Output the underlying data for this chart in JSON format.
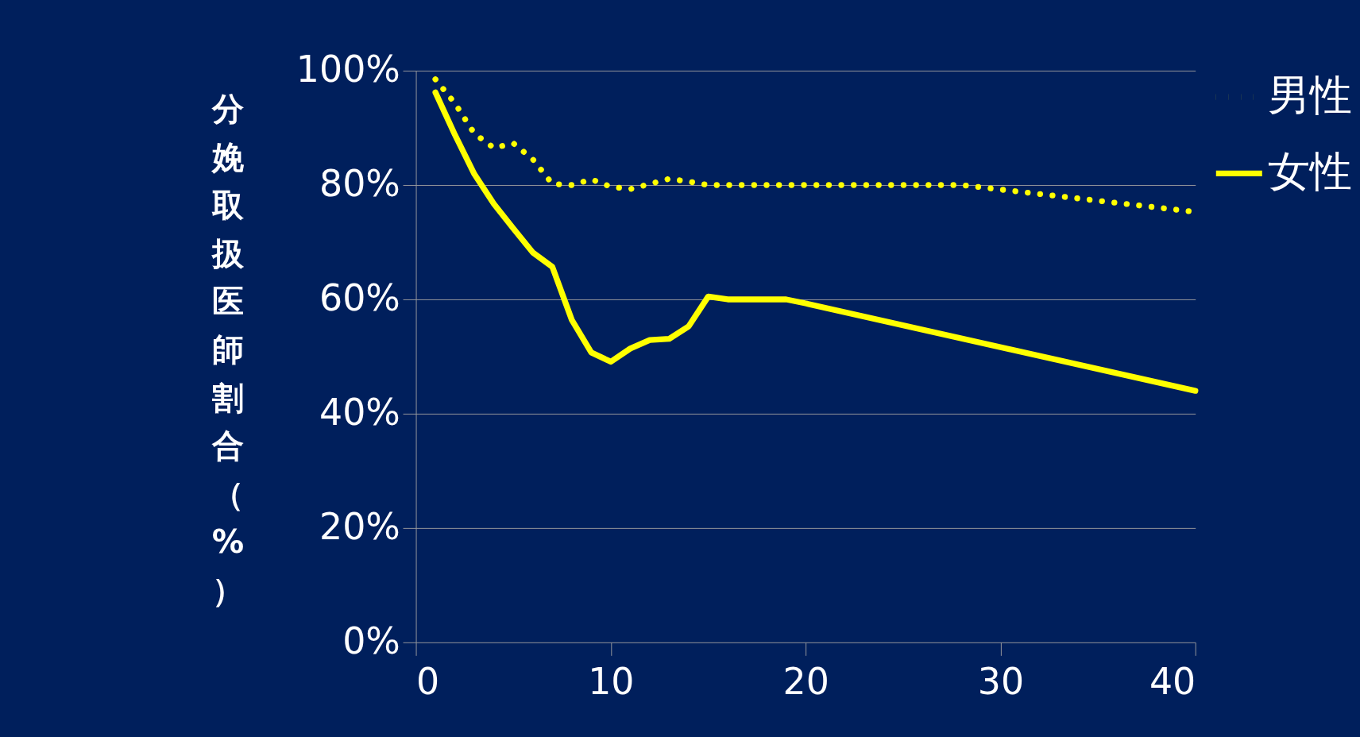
{
  "chart_data": {
    "type": "line",
    "ylabel": "分娩取扱医師割合（%）",
    "series": [
      {
        "name": "男性",
        "color": "#ffff00",
        "line_style": "dotted",
        "x": [
          1,
          2,
          3,
          4,
          5,
          6,
          7,
          8,
          9,
          10,
          11,
          12,
          13,
          14,
          15,
          28,
          40
        ],
        "values": [
          98.5,
          94.3,
          89,
          86.5,
          87.3,
          84.5,
          80.2,
          80,
          81,
          79.7,
          79.3,
          80.2,
          81.1,
          80.6,
          80,
          80,
          75.3
        ]
      },
      {
        "name": "女性",
        "color": "#ffff00",
        "line_style": "solid",
        "x": [
          1,
          2,
          3,
          4,
          5,
          6,
          7,
          8,
          9,
          10,
          11,
          12,
          13,
          14,
          15,
          16,
          19,
          20,
          40
        ],
        "values": [
          96.2,
          88.8,
          81.9,
          76.7,
          72.4,
          68.2,
          65.7,
          56.4,
          50.7,
          49.1,
          51.4,
          52.9,
          53.1,
          55.3,
          60.5,
          60,
          60,
          59.3,
          44
        ]
      }
    ],
    "xlim": [
      0,
      40
    ],
    "xticks": [
      0,
      10,
      20,
      30,
      40
    ],
    "ylim": [
      0,
      100
    ],
    "yticks": [
      {
        "value": 0,
        "label": "0%"
      },
      {
        "value": 20,
        "label": "20%"
      },
      {
        "value": 40,
        "label": "40%"
      },
      {
        "value": 60,
        "label": "60%"
      },
      {
        "value": 80,
        "label": "80%"
      },
      {
        "value": 100,
        "label": "100%"
      }
    ],
    "grid": "y",
    "legend": "right",
    "marker": "none"
  }
}
